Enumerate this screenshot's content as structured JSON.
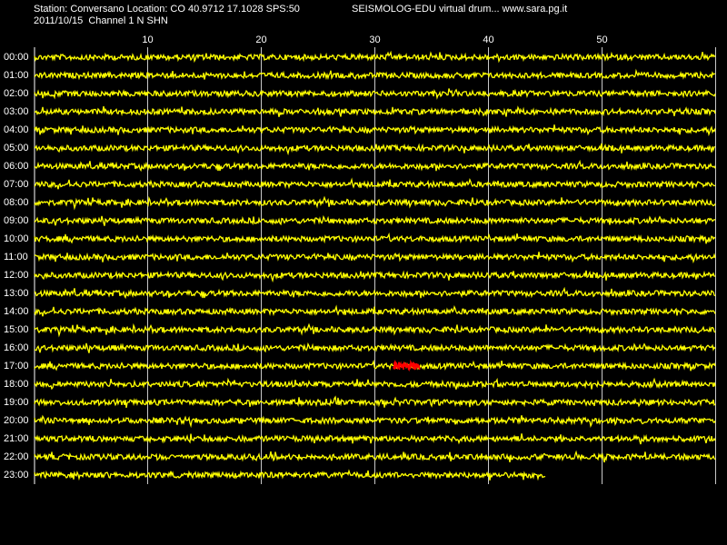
{
  "header": {
    "station": "Station: Conversano Location: CO 40.9712 17.1028 SPS:50",
    "program": "SEISMOLOG-EDU virtual drum... www.sara.pg.it",
    "date_channel": "2011/10/15  Channel 1 N SHN"
  },
  "axis": {
    "ticks": [
      "10",
      "20",
      "30",
      "40",
      "50"
    ]
  },
  "rows": [
    "00:00",
    "01:00",
    "02:00",
    "03:00",
    "04:00",
    "05:00",
    "06:00",
    "07:00",
    "08:00",
    "09:00",
    "10:00",
    "11:00",
    "12:00",
    "13:00",
    "14:00",
    "15:00",
    "16:00",
    "17:00",
    "18:00",
    "19:00",
    "20:00",
    "21:00",
    "22:00",
    "23:00"
  ]
}
